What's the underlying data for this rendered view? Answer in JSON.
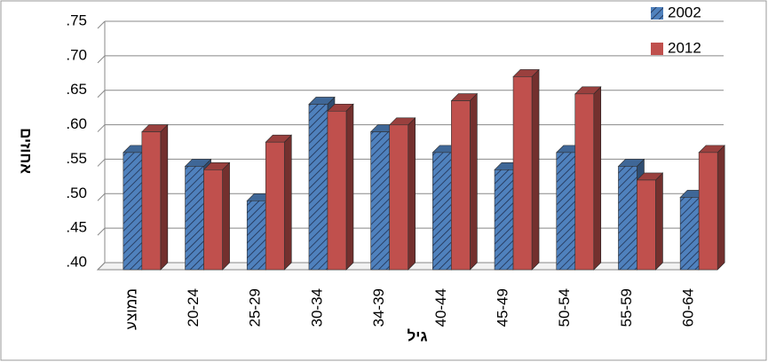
{
  "chart_data": {
    "type": "bar3d",
    "x_label": "גיל",
    "y_label": "אחוזים",
    "categories": [
      "ממוצע",
      "20-24",
      "25-29",
      "30-34",
      "34-39",
      "40-44",
      "45-49",
      "50-54",
      "55-59",
      "60-64"
    ],
    "series": [
      {
        "name": "2002",
        "color": "#4f81bd",
        "values": [
          0.57,
          0.55,
          0.5,
          0.64,
          0.6,
          0.57,
          0.545,
          0.57,
          0.55,
          0.505
        ]
      },
      {
        "name": "2012",
        "color": "#c0504d",
        "values": [
          0.6,
          0.545,
          0.585,
          0.63,
          0.61,
          0.645,
          0.68,
          0.655,
          0.53,
          0.57
        ]
      }
    ],
    "ylim": [
      0.4,
      0.75
    ],
    "yticks": [
      {
        "value": 0.4,
        "label": ".40"
      },
      {
        "value": 0.45,
        "label": ".45"
      },
      {
        "value": 0.5,
        "label": ".50"
      },
      {
        "value": 0.55,
        "label": ".55"
      },
      {
        "value": 0.6,
        "label": ".60"
      },
      {
        "value": 0.65,
        "label": ".65"
      },
      {
        "value": 0.7,
        "label": ".70"
      },
      {
        "value": 0.75,
        "label": ".75"
      }
    ],
    "grid": true
  }
}
